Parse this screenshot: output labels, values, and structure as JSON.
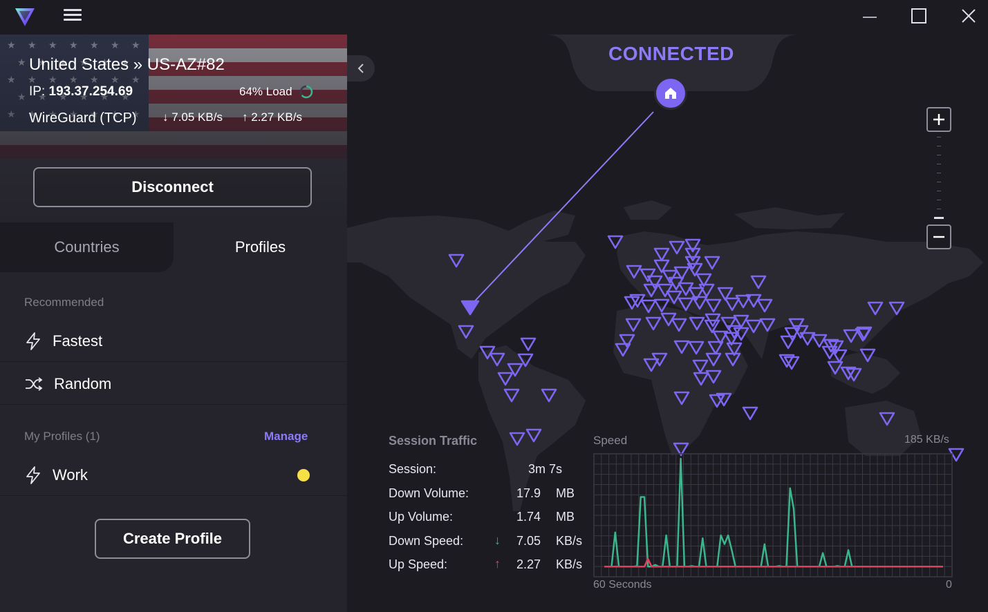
{
  "window": {
    "minimize_icon": "minimize-icon",
    "maximize_icon": "maximize-icon",
    "close_icon": "close-icon"
  },
  "connection": {
    "server": "United States » US-AZ#82",
    "ip_label": "IP:",
    "ip": "193.37.254.69",
    "load": "64% Load",
    "load_percent": 64,
    "protocol": "WireGuard (TCP)",
    "down_rate": "7.05 KB/s",
    "up_rate": "2.27 KB/s",
    "disconnect_label": "Disconnect",
    "status": "CONNECTED"
  },
  "tabs": [
    {
      "label": "Countries",
      "active": false
    },
    {
      "label": "Profiles",
      "active": true
    }
  ],
  "profiles": {
    "recommended_label": "Recommended",
    "fastest_label": "Fastest",
    "random_label": "Random",
    "my_profiles_label": "My Profiles (1)",
    "manage_label": "Manage",
    "work_label": "Work",
    "work_color": "#f5e046",
    "create_label": "Create Profile"
  },
  "traffic": {
    "title": "Session Traffic",
    "rows": [
      {
        "label": "Session:",
        "value": "3m 7s",
        "unit": ""
      },
      {
        "label": "Down Volume:",
        "value": "17.9",
        "unit": "MB"
      },
      {
        "label": "Up Volume:",
        "value": "1.74",
        "unit": "MB"
      },
      {
        "label": "Down Speed:",
        "value": "7.05",
        "unit": "KB/s"
      },
      {
        "label": "Up Speed:",
        "value": "2.27",
        "unit": "KB/s"
      }
    ]
  },
  "speed_chart": {
    "label": "Speed",
    "max_label": "185  KB/s",
    "x_start_label": "60 Seconds",
    "x_end_label": "0",
    "colors": {
      "down": "#3bb58c",
      "up": "#e0405a",
      "grid": "#3a3944"
    },
    "ymax": 185,
    "down": [
      2,
      2,
      2,
      60,
      2,
      2,
      2,
      2,
      2,
      3,
      120,
      120,
      2,
      2,
      5,
      2,
      2,
      55,
      2,
      2,
      2,
      185,
      2,
      2,
      3,
      2,
      2,
      50,
      2,
      2,
      2,
      2,
      55,
      40,
      55,
      30,
      2,
      2,
      2,
      2,
      2,
      2,
      2,
      2,
      40,
      2,
      2,
      2,
      3,
      2,
      2,
      135,
      100,
      2,
      2,
      2,
      2,
      2,
      2,
      2,
      25,
      2,
      2,
      2,
      3,
      2,
      2,
      30,
      2,
      2,
      2,
      2,
      2,
      2,
      2,
      2,
      2,
      2,
      2,
      2,
      2,
      2,
      2,
      2,
      2,
      2,
      2,
      2,
      2,
      2,
      2,
      2,
      2,
      2
    ],
    "up": [
      2,
      2,
      2,
      2,
      2,
      2,
      2,
      2,
      2,
      2,
      2,
      2,
      15,
      2,
      2,
      2,
      2,
      2,
      2,
      2,
      2,
      2,
      2,
      2,
      2,
      2,
      2,
      2,
      2,
      2,
      2,
      2,
      2,
      2,
      2,
      2,
      2,
      2,
      2,
      2,
      2,
      2,
      2,
      2,
      2,
      2,
      2,
      2,
      2,
      2,
      2,
      2,
      2,
      2,
      2,
      2,
      2,
      2,
      2,
      2,
      2,
      2,
      2,
      2,
      2,
      2,
      2,
      2,
      2,
      2,
      2,
      2,
      2,
      2,
      2,
      2,
      2,
      2,
      2,
      2,
      2,
      2,
      2,
      2,
      2,
      2,
      2,
      2,
      2,
      2,
      2,
      2,
      2,
      2
    ]
  },
  "icons": {
    "logo": "proton-vpn-logo",
    "fastest": "bolt-icon",
    "random": "shuffle-icon",
    "work": "bolt-icon",
    "home": "home-icon"
  }
}
